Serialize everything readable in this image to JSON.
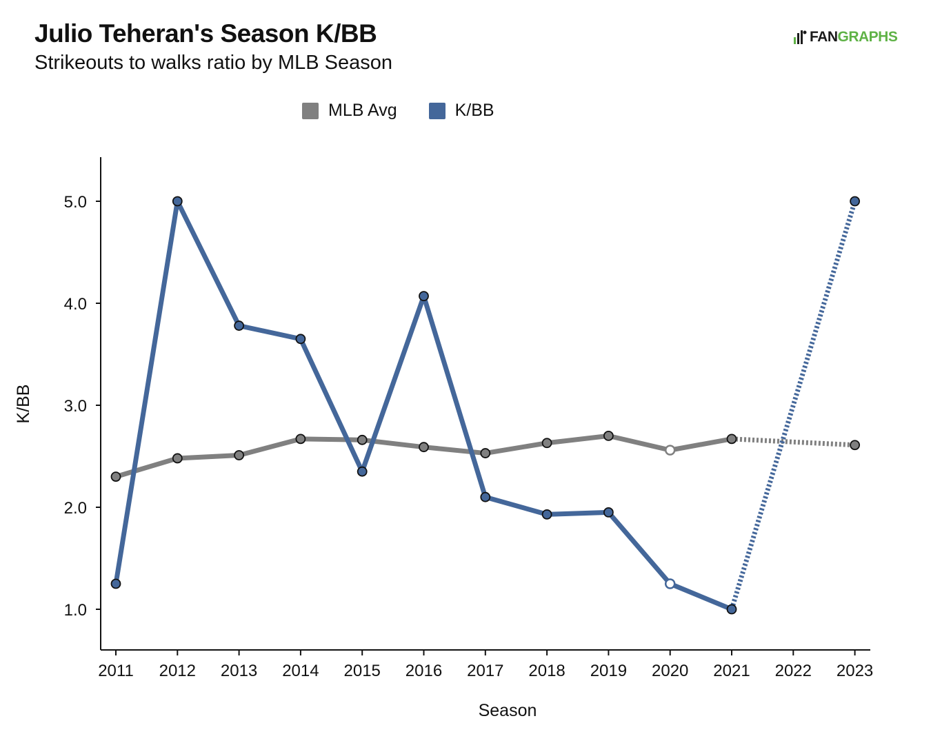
{
  "header": {
    "title": "Julio Teheran's Season K/BB",
    "subtitle": "Strikeouts to walks ratio by MLB Season",
    "logo_fan": "FAN",
    "logo_graphs": "GRAPHS"
  },
  "legend": [
    {
      "label": "MLB Avg",
      "color": "#808080"
    },
    {
      "label": "K/BB",
      "color": "#44679a"
    }
  ],
  "chart_data": {
    "type": "line",
    "xlabel": "Season",
    "ylabel": "K/BB",
    "ylim": [
      0.6,
      5.43
    ],
    "yticks": [
      1.0,
      2.0,
      3.0,
      4.0,
      5.0
    ],
    "yticklabels": [
      "1.0",
      "2.0",
      "3.0",
      "4.0",
      "5.0"
    ],
    "categories": [
      "2011",
      "2012",
      "2013",
      "2014",
      "2015",
      "2016",
      "2017",
      "2018",
      "2019",
      "2020",
      "2021",
      "2022",
      "2023"
    ],
    "series": [
      {
        "name": "MLB Avg",
        "color": "#808080",
        "points": [
          {
            "x": "2011",
            "y": 2.3
          },
          {
            "x": "2012",
            "y": 2.48
          },
          {
            "x": "2013",
            "y": 2.51
          },
          {
            "x": "2014",
            "y": 2.67
          },
          {
            "x": "2015",
            "y": 2.66
          },
          {
            "x": "2016",
            "y": 2.59
          },
          {
            "x": "2017",
            "y": 2.53
          },
          {
            "x": "2018",
            "y": 2.63
          },
          {
            "x": "2019",
            "y": 2.7
          },
          {
            "x": "2020",
            "y": 2.56,
            "hollow": true
          },
          {
            "x": "2021",
            "y": 2.67
          },
          {
            "x": "2023",
            "y": 2.61,
            "dotted_from_previous": true
          }
        ]
      },
      {
        "name": "K/BB",
        "color": "#44679a",
        "points": [
          {
            "x": "2011",
            "y": 1.25
          },
          {
            "x": "2012",
            "y": 5.0
          },
          {
            "x": "2013",
            "y": 3.78
          },
          {
            "x": "2014",
            "y": 3.65
          },
          {
            "x": "2015",
            "y": 2.35
          },
          {
            "x": "2016",
            "y": 4.07
          },
          {
            "x": "2017",
            "y": 2.1
          },
          {
            "x": "2018",
            "y": 1.93
          },
          {
            "x": "2019",
            "y": 1.95
          },
          {
            "x": "2020",
            "y": 1.25,
            "hollow": true
          },
          {
            "x": "2021",
            "y": 1.0
          },
          {
            "x": "2023",
            "y": 5.0,
            "dotted_from_previous": true
          }
        ]
      }
    ]
  }
}
